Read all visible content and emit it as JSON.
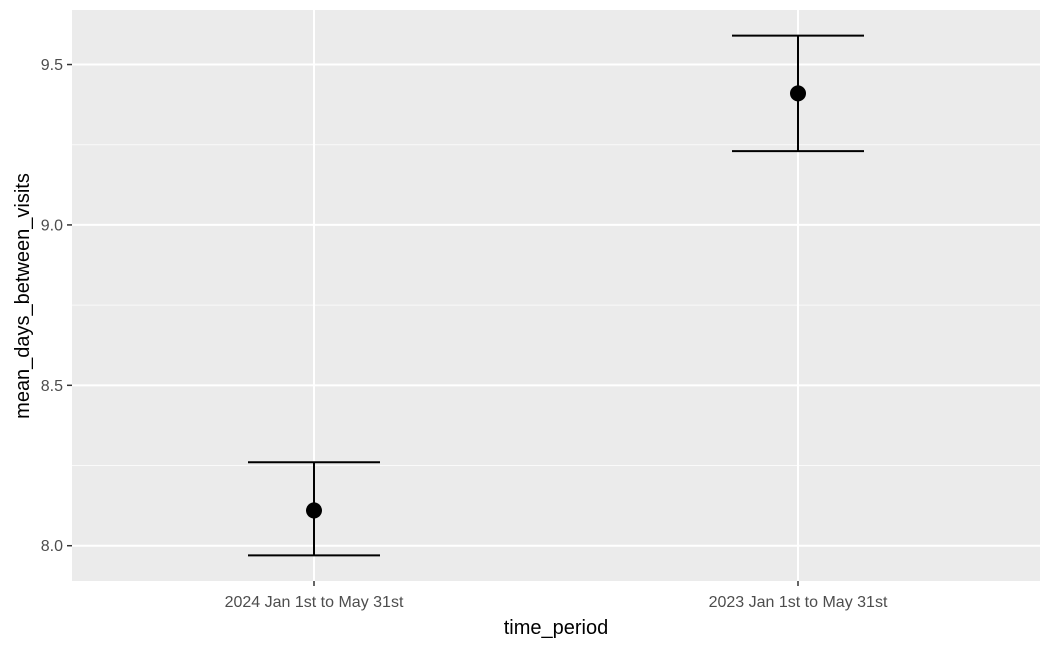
{
  "chart_data": {
    "type": "errorbar",
    "title": "",
    "xlabel": "time_period",
    "ylabel": "mean_days_between_visits",
    "categories": [
      "2024 Jan 1st to May 31st",
      "2023 Jan 1st to May 31st"
    ],
    "points": [
      {
        "category": "2024 Jan 1st to May 31st",
        "mean": 8.11,
        "lower": 7.97,
        "upper": 8.26
      },
      {
        "category": "2023 Jan 1st to May 31st",
        "mean": 9.41,
        "lower": 9.23,
        "upper": 9.59
      }
    ],
    "ylim": [
      7.89,
      9.67
    ],
    "yticks": [
      8.0,
      8.5,
      9.0,
      9.5
    ],
    "ytick_labels": [
      "8.0",
      "8.5",
      "9.0",
      "9.5"
    ],
    "grid": true,
    "colors": {
      "panel_background": "#ebebeb",
      "grid": "#ffffff",
      "marks": "#000000",
      "tick_text": "#4d4d4d",
      "axis_ticks": "#333333"
    }
  }
}
